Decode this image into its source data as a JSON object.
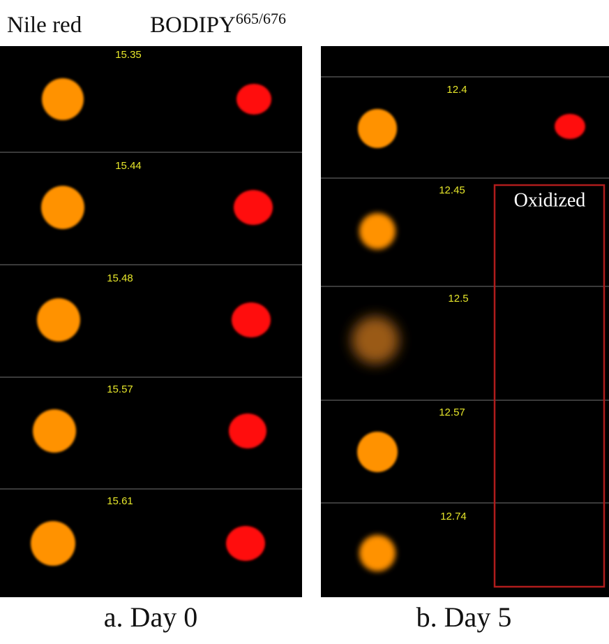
{
  "header": {
    "left": "Nile red",
    "right": "BODIPY",
    "right_superscript": "665/676"
  },
  "panels": [
    {
      "caption": "a. Day 0",
      "labels": [
        "15.35",
        "15.44",
        "15.48",
        "15.57",
        "15.61"
      ]
    },
    {
      "caption": "b. Day 5",
      "labels": [
        "12.4",
        "12.45",
        "12.5",
        "12.57",
        "12.74"
      ],
      "annotation": "Oxidized"
    }
  ]
}
